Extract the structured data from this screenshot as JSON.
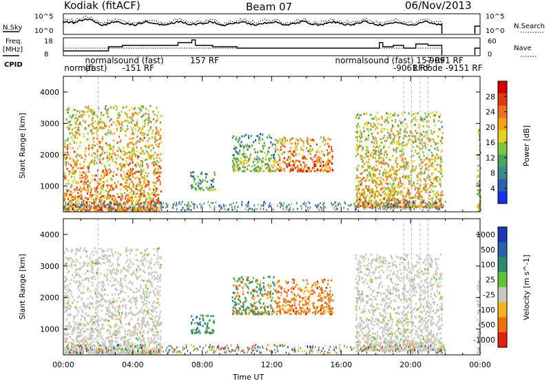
{
  "header": {
    "site": "Kodiak (fitACF)",
    "beam": "Beam 07",
    "date": "06/Nov/2013"
  },
  "panels_top": {
    "nsky_label": "N.Sky",
    "nsky_ticks": [
      "10^5",
      "10^0"
    ],
    "nsearch_label": "N.Search",
    "nsearch_ticks": [
      "10^5",
      "10^0"
    ],
    "freq_label_1": "Freq.",
    "freq_label_2": "[MHz]",
    "freq_ticks": [
      "18",
      "8"
    ],
    "nave_label": "Nave",
    "nave_ticks": [
      "60",
      "0"
    ],
    "cpid_label": "CPID",
    "cpid_annotations": [
      {
        "text": "normal",
        "t": 0.05,
        "row": 2
      },
      {
        "text": "(fast)",
        "t": 1.25,
        "row": 2
      },
      {
        "text": "normalsound (fast)",
        "t": 1.25,
        "row": 1
      },
      {
        "text": "-151 RF",
        "t": 3.4,
        "row": 2
      },
      {
        "text": "157 RF",
        "t": 7.3,
        "row": 1
      },
      {
        "text": "normalsound (fast) 157 RF",
        "t": 15.65,
        "row": 1
      },
      {
        "text": "-9061 RF",
        "t": 19.0,
        "row": 2
      },
      {
        "text": "RF",
        "t": 20.1,
        "row": 2
      },
      {
        "text": "-9091 RF",
        "t": 20.9,
        "row": 1
      },
      {
        "text": "code -9151 RF",
        "t": 20.7,
        "row": 2
      }
    ]
  },
  "chart_data": [
    {
      "type": "heatmap",
      "name": "Power",
      "xlabel": "",
      "ylabel": "Slant Range [km]",
      "xlim": [
        "00:00",
        "24:00"
      ],
      "ylim": [
        180,
        4500
      ],
      "yticks": [
        1000,
        2000,
        3000,
        4000
      ],
      "colorbar_label": "Power [dB]",
      "colorbar_ticks": [
        4,
        8,
        12,
        16,
        20,
        24,
        28
      ],
      "colorbar_colors": [
        "#1c2ff0",
        "#2b5fb6",
        "#3e8a8a",
        "#4ca35a",
        "#7cc43c",
        "#e6d21e",
        "#f5a315",
        "#f0701e",
        "#e23a14",
        "#d40000"
      ],
      "colorbar_range": [
        0,
        32
      ],
      "regions": [
        {
          "t0": 0.0,
          "t1": 5.6,
          "r0": 250,
          "r1": 3600,
          "mean": 20
        },
        {
          "t0": 7.3,
          "t1": 8.7,
          "r0": 900,
          "r1": 1500,
          "mean": 10
        },
        {
          "t0": 9.7,
          "t1": 12.2,
          "r0": 1500,
          "r1": 2700,
          "mean": 12
        },
        {
          "t0": 12.2,
          "t1": 15.5,
          "r0": 1500,
          "r1": 2600,
          "mean": 22
        },
        {
          "t0": 16.8,
          "t1": 21.8,
          "r0": 350,
          "r1": 3400,
          "mean": 18
        },
        {
          "t0": 23.8,
          "t1": 24.0,
          "r0": 250,
          "r1": 3100,
          "mean": 14
        }
      ]
    },
    {
      "type": "heatmap",
      "name": "Velocity",
      "xlabel": "Time UT",
      "ylabel": "Slant Range [km]",
      "xlim": [
        "00:00",
        "24:00"
      ],
      "xticks": [
        "00:00",
        "04:00",
        "08:00",
        "12:00",
        "16:00",
        "20:00",
        "00:00"
      ],
      "ylim": [
        180,
        4500
      ],
      "yticks": [
        1000,
        2000,
        3000,
        4000
      ],
      "colorbar_label": "Velocity [m s^-1]",
      "colorbar_ticks": [
        "1000",
        "500",
        "100",
        "25",
        "-25",
        "-100",
        "-500",
        "-1000"
      ],
      "colorbar_colors": [
        "#2036b8",
        "#2a62a8",
        "#2e8a6a",
        "#5fc23a",
        "#c8c8c0",
        "#f7b020",
        "#f07010",
        "#e02010"
      ],
      "regions": [
        {
          "t0": 0.0,
          "t1": 5.6,
          "r0": 250,
          "r1": 3600,
          "class": "ground"
        },
        {
          "t0": 7.3,
          "t1": 8.7,
          "r0": 900,
          "r1": 1500,
          "class": "toward"
        },
        {
          "t0": 9.7,
          "t1": 12.2,
          "r0": 1500,
          "r1": 2700,
          "class": "mixed"
        },
        {
          "t0": 12.2,
          "t1": 15.5,
          "r0": 1500,
          "r1": 2600,
          "class": "away"
        },
        {
          "t0": 16.8,
          "t1": 21.8,
          "r0": 350,
          "r1": 3400,
          "class": "ground"
        },
        {
          "t0": 23.8,
          "t1": 24.0,
          "r0": 250,
          "r1": 3100,
          "class": "ground"
        }
      ]
    }
  ]
}
